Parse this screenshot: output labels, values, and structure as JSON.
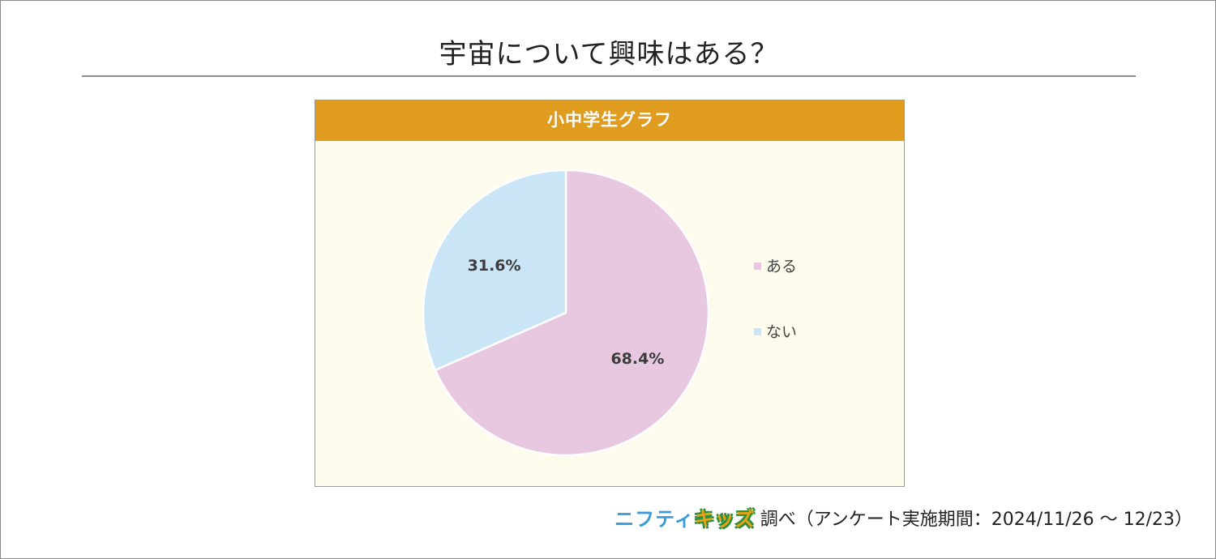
{
  "page": {
    "title": "宇宙について興味はある？"
  },
  "chart_panel": {
    "header": "小中学生グラフ",
    "header_color": "#e09c1e",
    "background_color": "#fdfbec"
  },
  "chart_data": {
    "type": "pie",
    "title": "小中学生グラフ",
    "slices": [
      {
        "label": "ある",
        "value": 68.4,
        "display": "68.4%",
        "color": "#e8c8e1"
      },
      {
        "label": "ない",
        "value": 31.6,
        "display": "31.6%",
        "color": "#cae5f6"
      }
    ],
    "start_angle_deg": 0,
    "direction": "clockwise",
    "legend_position": "right",
    "data_labels": true
  },
  "footer": {
    "logo_part1": "ニフティ",
    "logo_part2": "キッズ",
    "source": "調べ（アンケート実施期間：2024/11/26 ～ 12/23）"
  }
}
